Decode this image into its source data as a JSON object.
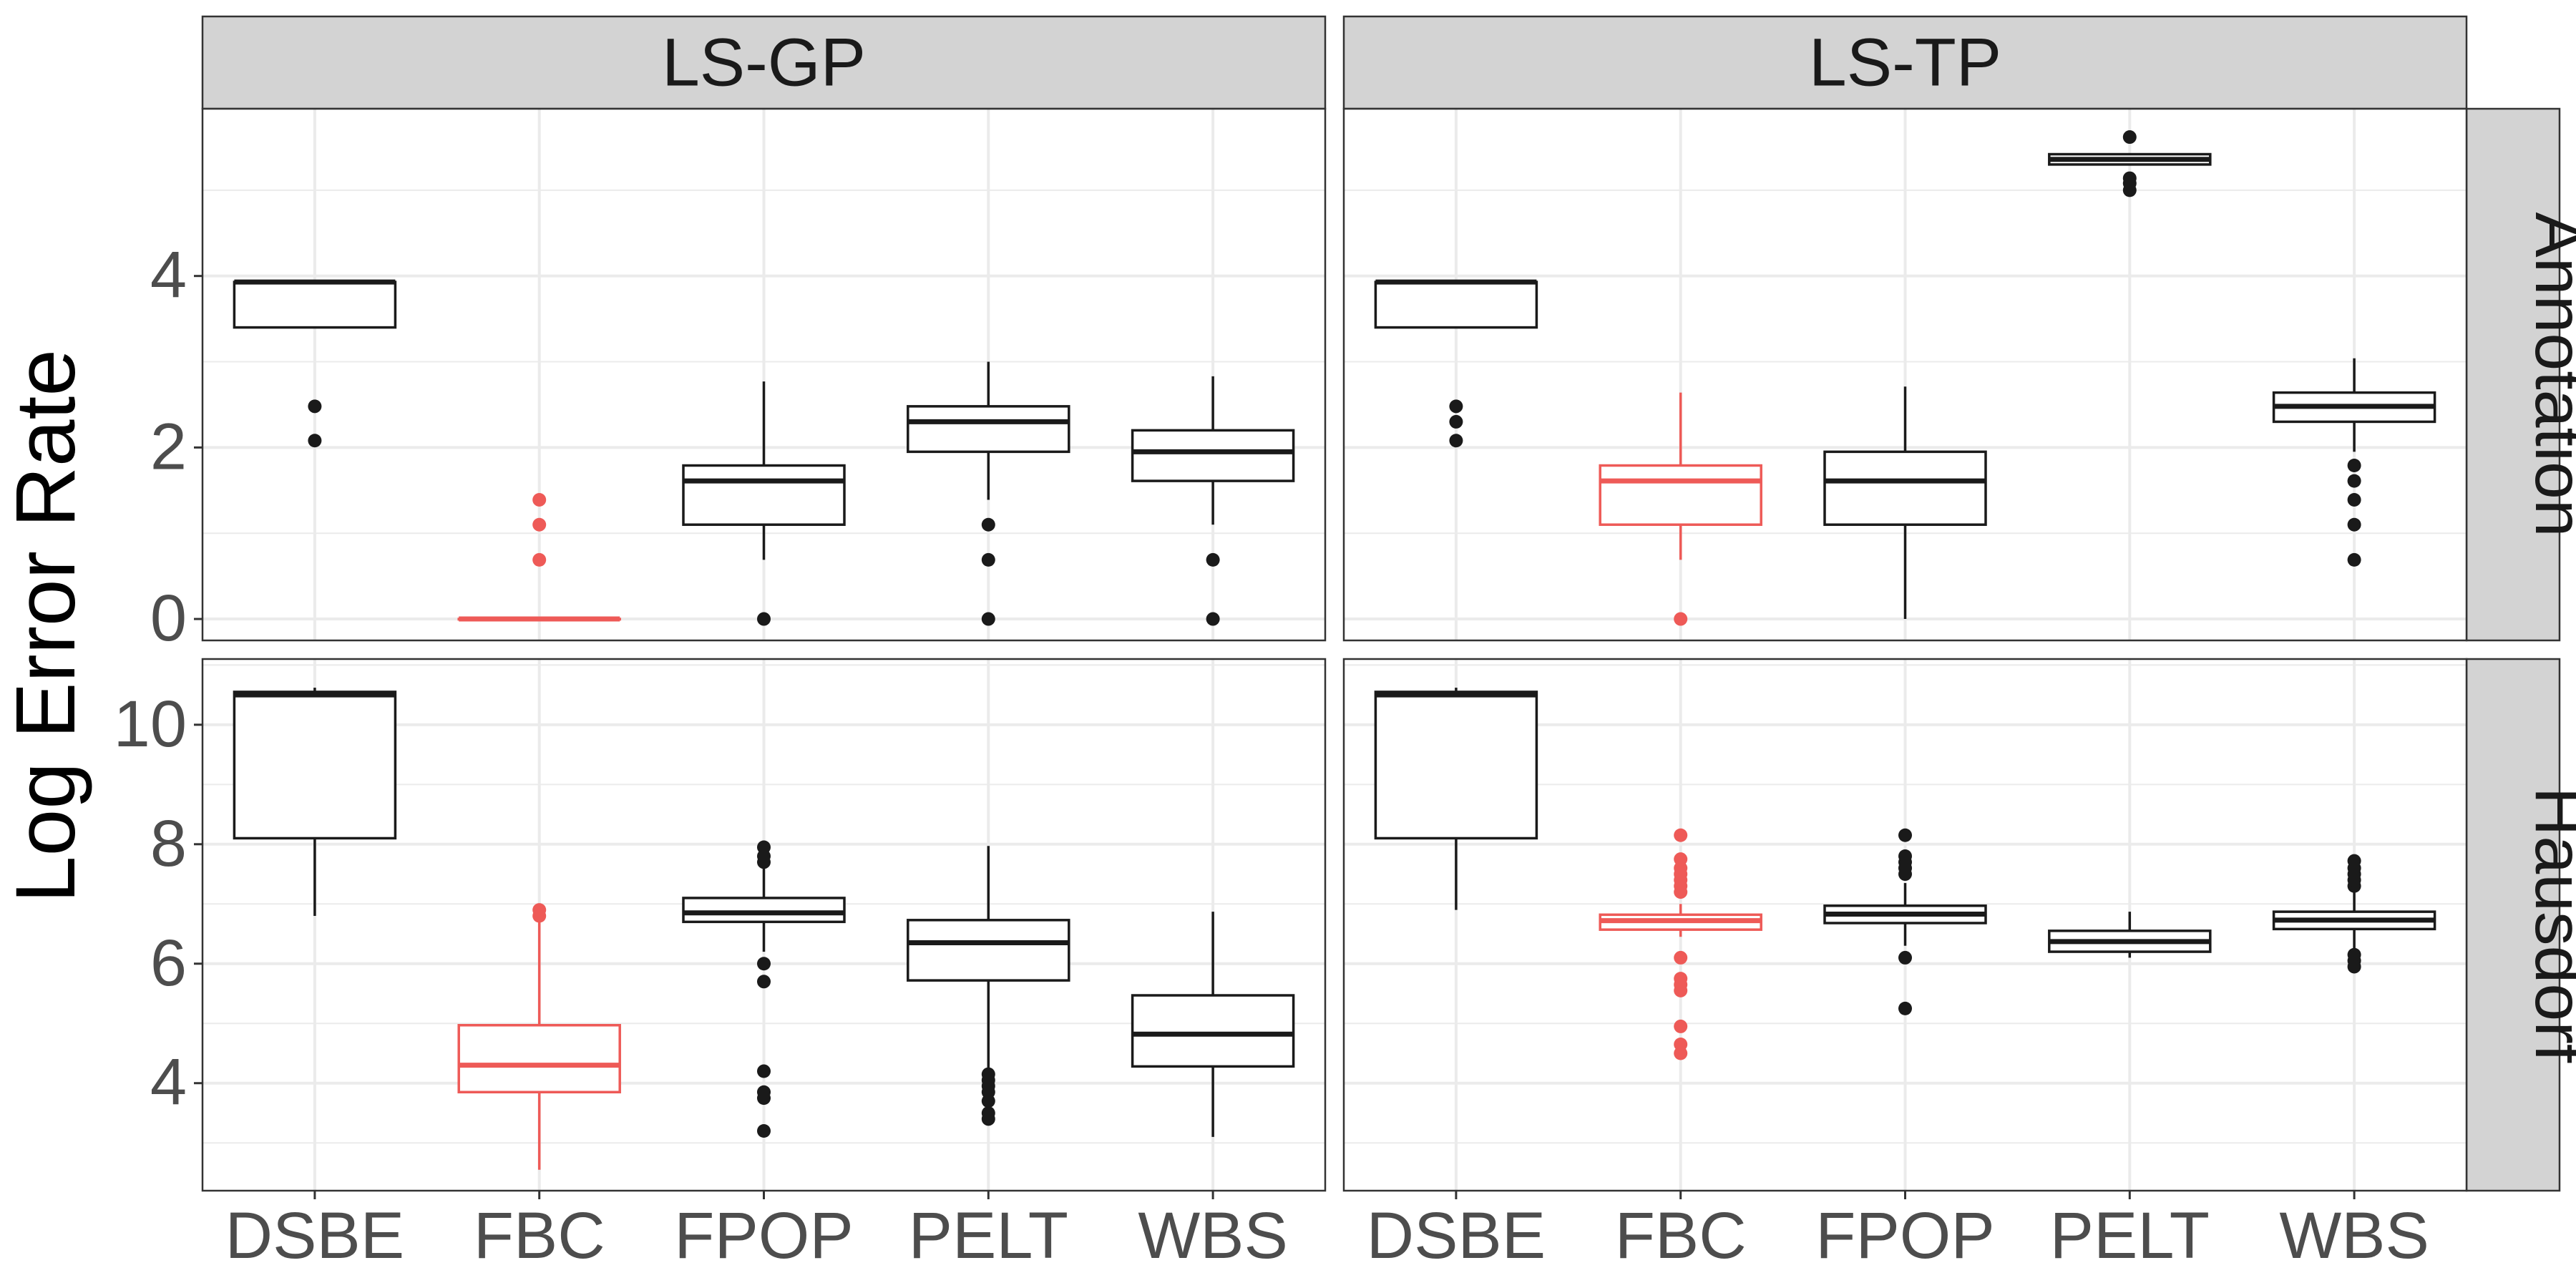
{
  "chart_data": {
    "type": "boxplot",
    "ylabel": "Log Error Rate",
    "categories": [
      "DSBE",
      "FBC",
      "FPOP",
      "PELT",
      "WBS"
    ],
    "highlight_category": "FBC",
    "colors": {
      "default": "#1a1a1a",
      "highlight": "#ee5a57",
      "strip": "#d3d3d3",
      "grid": "#ebebeb"
    },
    "column_strips": [
      "LS-GP",
      "LS-TP"
    ],
    "row_strips": [
      "Annotation",
      "Hausdorf"
    ],
    "rows": [
      {
        "ylim": [
          -0.25,
          5.95
        ],
        "yticks": [
          0,
          2,
          4
        ],
        "ytick_labels": [
          "0",
          "2",
          "4"
        ]
      },
      {
        "ylim": [
          2.2,
          11.1
        ],
        "yticks": [
          4,
          6,
          8,
          10
        ],
        "ytick_labels": [
          "4",
          "6",
          "8",
          "10"
        ]
      }
    ],
    "panels": [
      {
        "column": "LS-GP",
        "row": "Annotation",
        "boxes": [
          {
            "category": "DSBE",
            "min": 3.4,
            "q1": 3.4,
            "median": 3.93,
            "q3": 3.93,
            "max": 3.93,
            "outliers": [
              2.08,
              2.48
            ]
          },
          {
            "category": "FBC",
            "min": 0,
            "q1": 0,
            "median": 0,
            "q3": 0,
            "max": 0,
            "outliers": [
              0.69,
              1.1,
              1.39
            ]
          },
          {
            "category": "FPOP",
            "min": 0.69,
            "q1": 1.1,
            "median": 1.61,
            "q3": 1.79,
            "max": 2.77,
            "outliers": [
              0
            ]
          },
          {
            "category": "PELT",
            "min": 1.39,
            "q1": 1.95,
            "median": 2.3,
            "q3": 2.48,
            "max": 3.0,
            "outliers": [
              0,
              0.69,
              1.1
            ]
          },
          {
            "category": "WBS",
            "min": 1.1,
            "q1": 1.61,
            "median": 1.95,
            "q3": 2.2,
            "max": 2.83,
            "outliers": [
              0,
              0.69
            ]
          }
        ]
      },
      {
        "column": "LS-TP",
        "row": "Annotation",
        "boxes": [
          {
            "category": "DSBE",
            "min": 3.4,
            "q1": 3.4,
            "median": 3.93,
            "q3": 3.93,
            "max": 3.93,
            "outliers": [
              2.08,
              2.3,
              2.48
            ]
          },
          {
            "category": "FBC",
            "min": 0.69,
            "q1": 1.1,
            "median": 1.61,
            "q3": 1.79,
            "max": 2.64,
            "outliers": [
              0
            ]
          },
          {
            "category": "FPOP",
            "min": 0,
            "q1": 1.1,
            "median": 1.61,
            "q3": 1.95,
            "max": 2.71,
            "outliers": []
          },
          {
            "category": "PELT",
            "min": 5.3,
            "q1": 5.3,
            "median": 5.36,
            "q3": 5.42,
            "max": 5.42,
            "outliers": [
              5.0,
              5.08,
              5.14,
              5.62
            ]
          },
          {
            "category": "WBS",
            "min": 1.95,
            "q1": 2.3,
            "median": 2.48,
            "q3": 2.64,
            "max": 3.04,
            "outliers": [
              0.69,
              1.1,
              1.39,
              1.61,
              1.79
            ]
          }
        ]
      },
      {
        "column": "LS-GP",
        "row": "Hausdorf",
        "boxes": [
          {
            "category": "DSBE",
            "min": 6.8,
            "q1": 8.1,
            "median": 10.5,
            "q3": 10.55,
            "max": 10.62,
            "outliers": []
          },
          {
            "category": "FBC",
            "min": 2.55,
            "q1": 3.85,
            "median": 4.3,
            "q3": 4.97,
            "max": 6.75,
            "outliers": [
              6.8,
              6.9
            ]
          },
          {
            "category": "FPOP",
            "min": 6.2,
            "q1": 6.7,
            "median": 6.85,
            "q3": 7.1,
            "max": 7.6,
            "outliers": [
              3.2,
              3.75,
              3.85,
              4.2,
              5.7,
              6.0,
              7.7,
              7.8,
              7.95
            ]
          },
          {
            "category": "PELT",
            "min": 4.2,
            "q1": 5.72,
            "median": 6.35,
            "q3": 6.73,
            "max": 7.97,
            "outliers": [
              3.4,
              3.5,
              3.7,
              3.85,
              3.95,
              4.05,
              4.15
            ]
          },
          {
            "category": "WBS",
            "min": 3.1,
            "q1": 4.28,
            "median": 4.82,
            "q3": 5.47,
            "max": 6.87,
            "outliers": []
          }
        ]
      },
      {
        "column": "LS-TP",
        "row": "Hausdorf",
        "boxes": [
          {
            "category": "DSBE",
            "min": 6.9,
            "q1": 8.1,
            "median": 10.5,
            "q3": 10.55,
            "max": 10.62,
            "outliers": []
          },
          {
            "category": "FBC",
            "min": 6.45,
            "q1": 6.57,
            "median": 6.72,
            "q3": 6.82,
            "max": 7.0,
            "outliers": [
              4.5,
              4.65,
              4.95,
              5.55,
              5.65,
              5.75,
              6.1,
              7.2,
              7.3,
              7.4,
              7.5,
              7.6,
              7.75,
              8.15
            ]
          },
          {
            "category": "FPOP",
            "min": 6.3,
            "q1": 6.68,
            "median": 6.83,
            "q3": 6.97,
            "max": 7.35,
            "outliers": [
              5.25,
              6.1,
              7.5,
              7.6,
              7.7,
              7.8,
              8.15
            ]
          },
          {
            "category": "PELT",
            "min": 6.1,
            "q1": 6.2,
            "median": 6.37,
            "q3": 6.55,
            "max": 6.87,
            "outliers": []
          },
          {
            "category": "WBS",
            "min": 6.25,
            "q1": 6.58,
            "median": 6.73,
            "q3": 6.87,
            "max": 7.2,
            "outliers": [
              5.95,
              6.05,
              6.15,
              7.3,
              7.4,
              7.5,
              7.6,
              7.72
            ]
          }
        ]
      }
    ]
  }
}
